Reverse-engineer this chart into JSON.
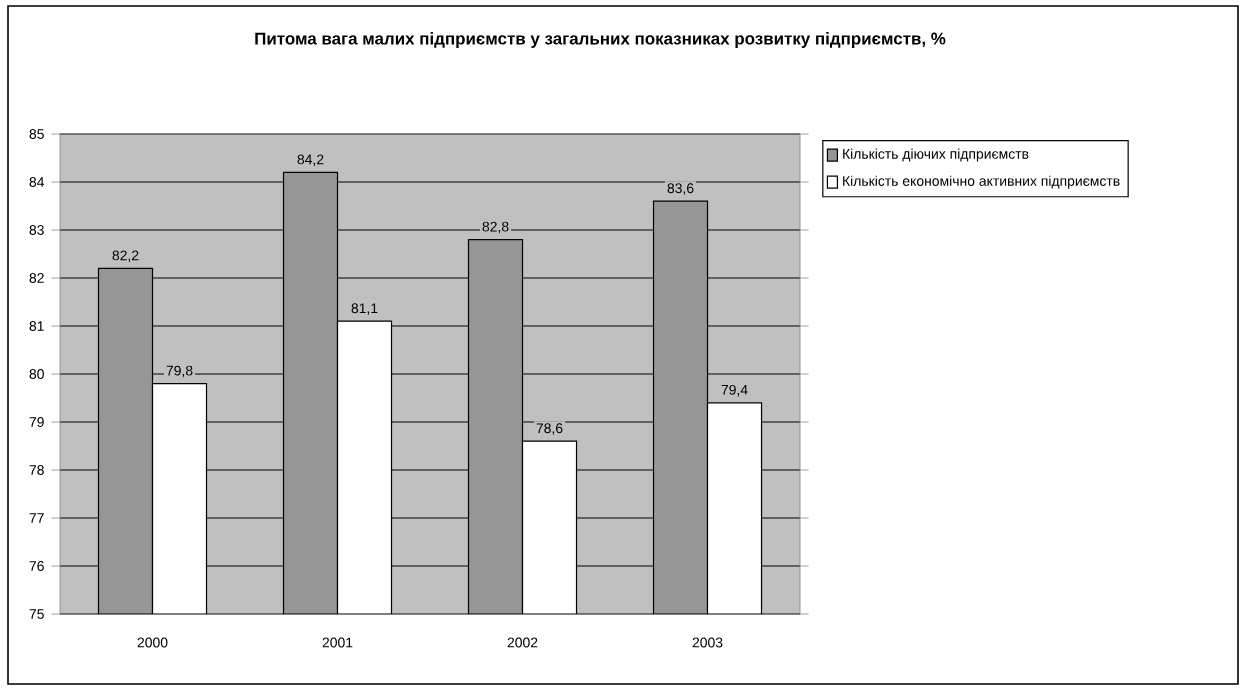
{
  "chart_data": {
    "type": "bar",
    "title": "Питома вага малих підприємств у загальних показниках розвитку підприємств, %",
    "categories": [
      "2000",
      "2001",
      "2002",
      "2003"
    ],
    "series": [
      {
        "name": "Кількість діючих підприємств",
        "color": "#969696",
        "values": [
          82.2,
          84.2,
          82.8,
          83.6
        ],
        "value_labels": [
          "82,2",
          "84,2",
          "82,8",
          "83,6"
        ]
      },
      {
        "name": "Кількість економічно активних підприємств",
        "color": "#ffffff",
        "values": [
          79.8,
          81.1,
          78.6,
          79.4
        ],
        "value_labels": [
          "79,8",
          "81,1",
          "78,6",
          "79,4"
        ]
      }
    ],
    "ylim": [
      75,
      85
    ],
    "yticks": [
      75,
      76,
      77,
      78,
      79,
      80,
      81,
      82,
      83,
      84,
      85
    ],
    "grid": "y",
    "legend": "right"
  }
}
